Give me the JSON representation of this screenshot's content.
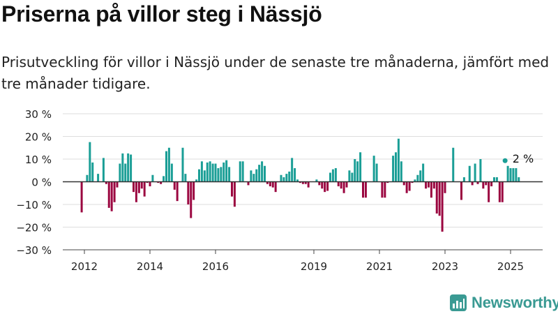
{
  "title": "Priserna på villor steg i Nässjö",
  "subtitle": "Prisutveckling för villor i Nässjö under de senaste tre månaderna, jämfört med tre månader tidigare.",
  "brand": {
    "name": "Newsworthy",
    "icon": "newsworthy-logo-icon",
    "color": "#3a9a93"
  },
  "colors": {
    "positive": "#1a9e96",
    "negative": "#9b0640",
    "grid": "#dddddd",
    "zero_line": "#333333"
  },
  "chart_data": {
    "type": "bar",
    "xlabel": "",
    "ylabel": "",
    "ylim": [
      -30,
      30
    ],
    "yticks": [
      -30,
      -20,
      -10,
      0,
      10,
      20,
      30
    ],
    "ytick_labels": [
      "−30 %",
      "−20 %",
      "−10 %",
      "0 %",
      "10 %",
      "20 %",
      "30 %"
    ],
    "x_tick_labels": [
      {
        "label": "2012",
        "x": 2012.0
      },
      {
        "label": "2014",
        "x": 2014.0
      },
      {
        "label": "2016",
        "x": 2016.0
      },
      {
        "label": "2019",
        "x": 2019.0
      },
      {
        "label": "2021",
        "x": 2021.0
      },
      {
        "label": "2023",
        "x": 2023.0
      },
      {
        "label": "2025",
        "x": 2025.0
      }
    ],
    "annotation": {
      "text": "2 %",
      "x": 2025.25,
      "y": 2
    },
    "grid": true,
    "series": [
      {
        "x": [
          2011.917,
          2012.083,
          2012.167,
          2012.25,
          2012.333,
          2012.417,
          2012.5,
          2012.583,
          2012.667,
          2012.75,
          2012.833,
          2012.917,
          2013.0,
          2013.083,
          2013.167,
          2013.25,
          2013.333,
          2013.417,
          2013.5,
          2013.583,
          2013.667,
          2013.75,
          2013.833,
          2013.917,
          2014.0,
          2014.083,
          2014.167,
          2014.25,
          2014.333,
          2014.417,
          2014.5,
          2014.583,
          2014.667,
          2014.75,
          2014.833,
          2014.917,
          2015.0,
          2015.083,
          2015.167,
          2015.25,
          2015.333,
          2015.417,
          2015.5,
          2015.583,
          2015.667,
          2015.75,
          2015.833,
          2015.917,
          2016.0,
          2016.083,
          2016.167,
          2016.25,
          2016.333,
          2016.417,
          2016.5,
          2016.583,
          2016.667,
          2016.75,
          2016.833,
          2016.917,
          2017.0,
          2017.083,
          2017.167,
          2017.25,
          2017.333,
          2017.417,
          2017.5,
          2017.583,
          2017.667,
          2017.75,
          2017.833,
          2017.917,
          2018.0,
          2018.083,
          2018.167,
          2018.25,
          2018.333,
          2018.417,
          2018.5,
          2018.583,
          2018.667,
          2018.75,
          2018.833,
          2018.917,
          2019.0,
          2019.083,
          2019.167,
          2019.25,
          2019.333,
          2019.417,
          2019.5,
          2019.583,
          2019.667,
          2019.75,
          2019.833,
          2019.917,
          2020.0,
          2020.083,
          2020.167,
          2020.25,
          2020.333,
          2020.417,
          2020.5,
          2020.583,
          2020.667,
          2020.75,
          2020.833,
          2020.917,
          2021.0,
          2021.083,
          2021.167,
          2021.25,
          2021.333,
          2021.417,
          2021.5,
          2021.583,
          2021.667,
          2021.75,
          2021.833,
          2021.917,
          2022.0,
          2022.083,
          2022.167,
          2022.25,
          2022.333,
          2022.417,
          2022.5,
          2022.583,
          2022.667,
          2022.75,
          2022.833,
          2022.917,
          2023.0,
          2023.083,
          2023.167,
          2023.25,
          2023.333,
          2023.417,
          2023.5,
          2023.583,
          2023.667,
          2023.75,
          2023.833,
          2023.917,
          2024.0,
          2024.083,
          2024.167,
          2024.25,
          2024.333,
          2024.417,
          2024.5,
          2024.583,
          2024.667,
          2024.75,
          2024.833,
          2024.917,
          2025.0,
          2025.083,
          2025.167,
          2025.25
        ],
        "values": [
          -13.5,
          3,
          17.5,
          8.5,
          0,
          3.5,
          0,
          10.5,
          -1,
          -11.5,
          -13,
          -9,
          -2.5,
          8,
          12.5,
          8,
          12.5,
          12,
          -4.5,
          -9,
          -5,
          -3,
          -6.5,
          -0.5,
          -2,
          3,
          0,
          -0.5,
          -1,
          2.5,
          13.5,
          15,
          8,
          -3.5,
          -8.5,
          0,
          15,
          3.5,
          -10,
          -16,
          -8,
          1,
          5.5,
          9,
          5,
          8.5,
          9,
          8,
          8,
          6,
          6.5,
          8.5,
          9.5,
          6.5,
          -6.5,
          -11,
          0,
          9,
          9,
          0,
          -1.5,
          5,
          3.5,
          5.5,
          7.5,
          9,
          7,
          -1,
          -2,
          -2.5,
          -4.5,
          0,
          3,
          2,
          3.5,
          4.5,
          10.5,
          6,
          1,
          -0.5,
          -1,
          -1,
          -2.5,
          0,
          0,
          1,
          -1.5,
          -3,
          -4.5,
          -4,
          4,
          5.5,
          6,
          -2,
          -3,
          -5,
          -2.5,
          5,
          4,
          10,
          9,
          13,
          -7,
          -7,
          0,
          0,
          11.5,
          8,
          0,
          -7,
          -7,
          -0.5,
          0,
          11.5,
          13,
          19,
          9,
          -1.5,
          -5,
          -4,
          -0.5,
          1,
          3,
          5,
          8,
          -3,
          -2.5,
          -7,
          -3,
          -14,
          -15,
          -22,
          -5,
          0,
          0,
          15,
          0,
          0,
          -8,
          2,
          0,
          7,
          -1.5,
          8,
          -1,
          10,
          -3,
          -1.5,
          -9,
          -2,
          2,
          2,
          -9,
          -9,
          0,
          7,
          6,
          6,
          6,
          2
        ]
      }
    ]
  }
}
